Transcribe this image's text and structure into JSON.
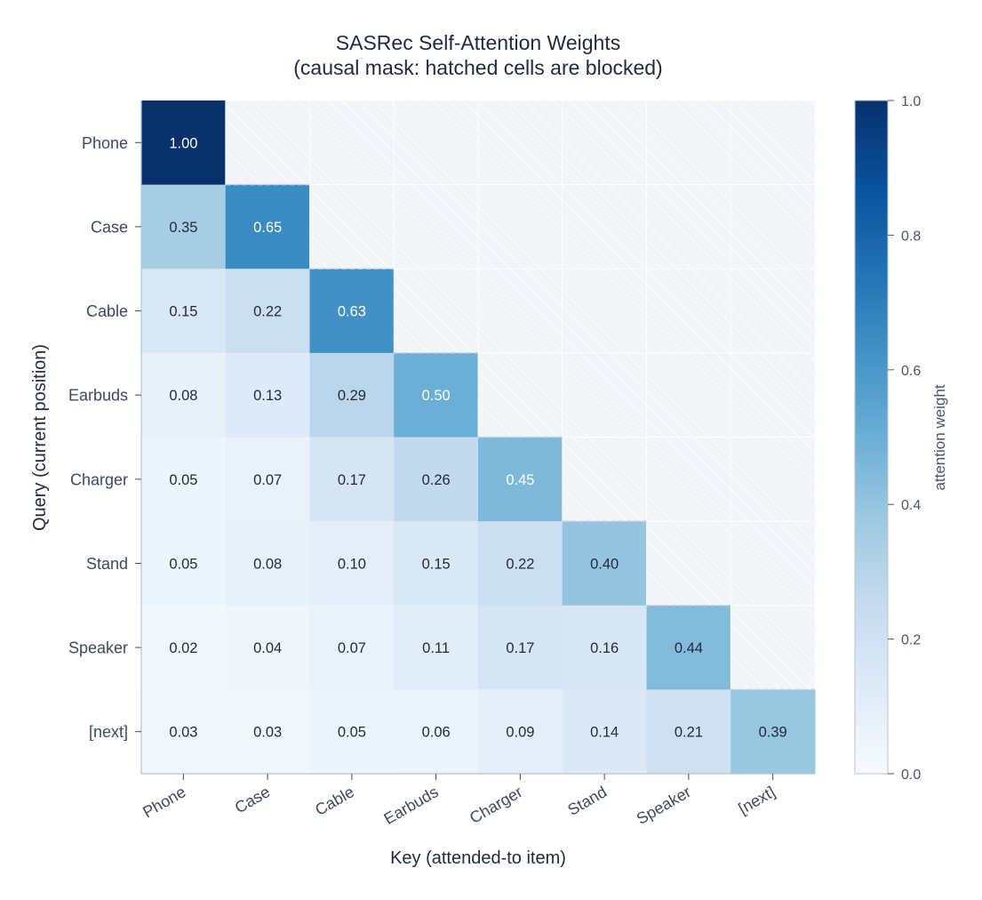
{
  "chart_data": {
    "type": "heatmap",
    "title_lines": [
      "SASRec Self-Attention Weights",
      "(causal mask: hatched cells are blocked)"
    ],
    "xlabel": "Key (attended-to item)",
    "ylabel": "Query (current position)",
    "x_categories": [
      "Phone",
      "Case",
      "Cable",
      "Earbuds",
      "Charger",
      "Stand",
      "Speaker",
      "[next]"
    ],
    "y_categories": [
      "Phone",
      "Case",
      "Cable",
      "Earbuds",
      "Charger",
      "Stand",
      "Speaker",
      "[next]"
    ],
    "values": [
      [
        1.0,
        null,
        null,
        null,
        null,
        null,
        null,
        null
      ],
      [
        0.35,
        0.65,
        null,
        null,
        null,
        null,
        null,
        null
      ],
      [
        0.15,
        0.22,
        0.63,
        null,
        null,
        null,
        null,
        null
      ],
      [
        0.08,
        0.13,
        0.29,
        0.5,
        null,
        null,
        null,
        null
      ],
      [
        0.05,
        0.07,
        0.17,
        0.26,
        0.45,
        null,
        null,
        null
      ],
      [
        0.05,
        0.08,
        0.1,
        0.15,
        0.22,
        0.4,
        null,
        null
      ],
      [
        0.02,
        0.04,
        0.07,
        0.11,
        0.17,
        0.16,
        0.44,
        null
      ],
      [
        0.03,
        0.03,
        0.05,
        0.06,
        0.09,
        0.14,
        0.21,
        0.39
      ]
    ],
    "value_labels": [
      [
        "1.00",
        "",
        "",
        "",
        "",
        "",
        "",
        ""
      ],
      [
        "0.35",
        "0.65",
        "",
        "",
        "",
        "",
        "",
        ""
      ],
      [
        "0.15",
        "0.22",
        "0.63",
        "",
        "",
        "",
        "",
        ""
      ],
      [
        "0.08",
        "0.13",
        "0.29",
        "0.50",
        "",
        "",
        "",
        ""
      ],
      [
        "0.05",
        "0.07",
        "0.17",
        "0.26",
        "0.45",
        "",
        "",
        ""
      ],
      [
        "0.05",
        "0.08",
        "0.10",
        "0.15",
        "0.22",
        "0.40",
        "",
        ""
      ],
      [
        "0.02",
        "0.04",
        "0.07",
        "0.11",
        "0.17",
        "0.16",
        "0.44",
        ""
      ],
      [
        "0.03",
        "0.03",
        "0.05",
        "0.06",
        "0.09",
        "0.14",
        "0.21",
        "0.39"
      ]
    ],
    "colorbar": {
      "label": "attention weight",
      "range": [
        0,
        1
      ],
      "ticks": [
        0.0,
        0.2,
        0.4,
        0.6,
        0.8,
        1.0
      ],
      "tick_labels": [
        "0.0",
        "0.2",
        "0.4",
        "0.6",
        "0.8",
        "1.0"
      ],
      "colormap": "Blues"
    },
    "masked_cell_color": "#f1f4f8",
    "hatch_color": "#ffffff",
    "light_text_color": "#ffffff",
    "dark_text_color": "#1f2a3c"
  }
}
